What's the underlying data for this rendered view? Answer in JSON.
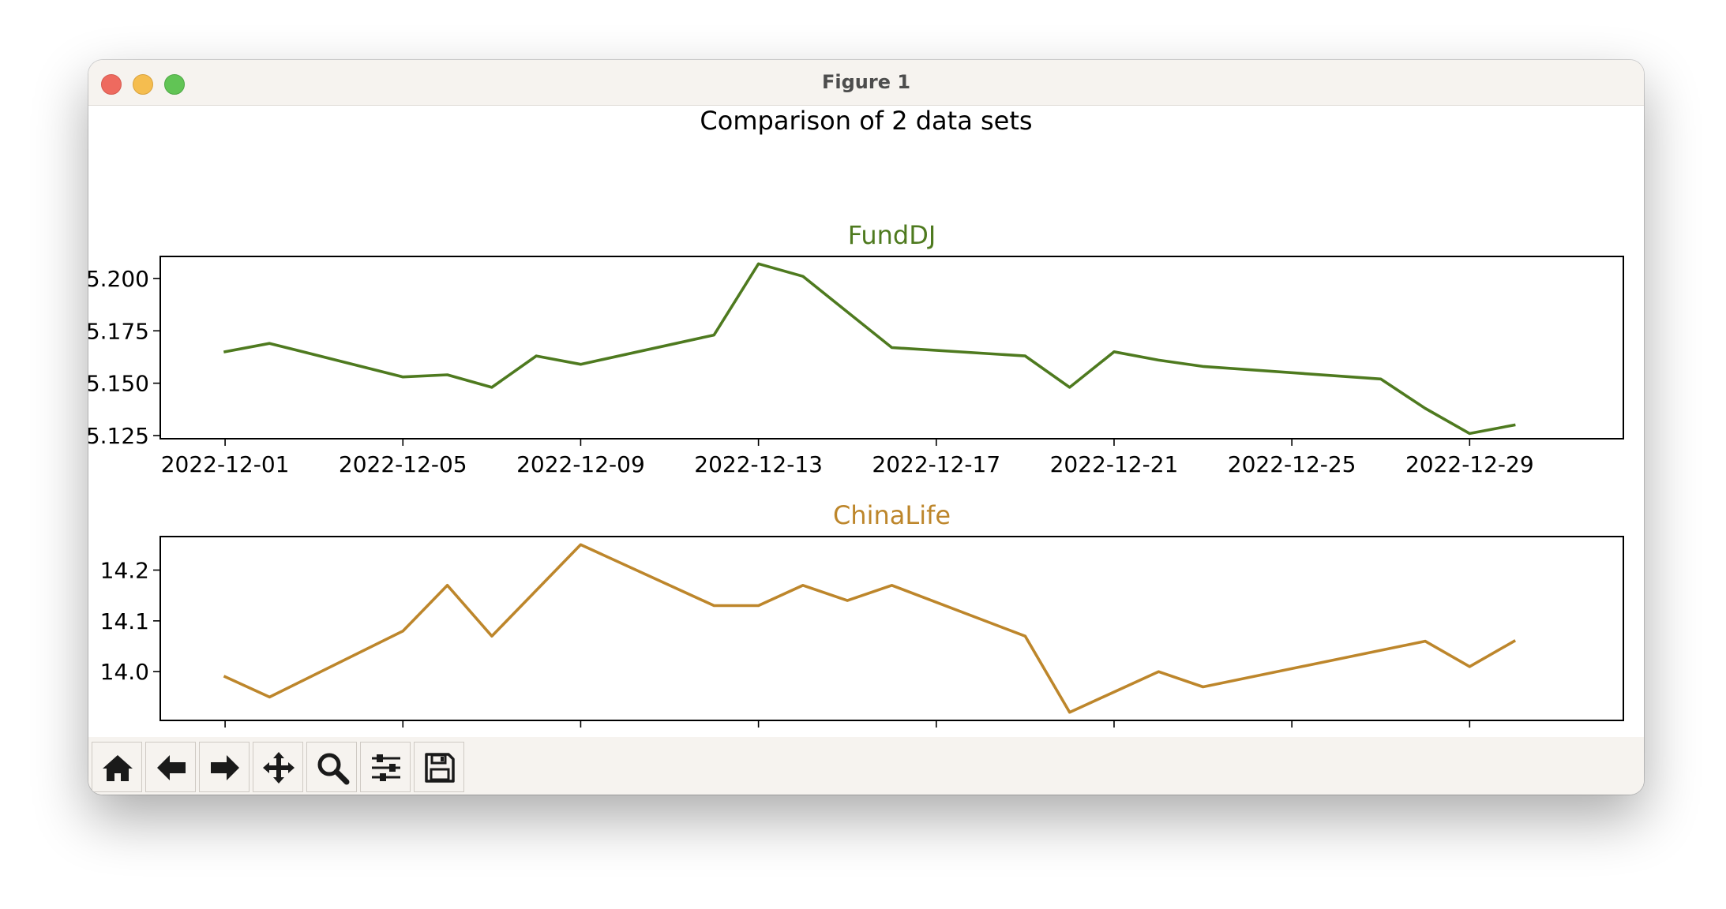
{
  "window": {
    "title": "Figure 1"
  },
  "toolbar": {
    "buttons": [
      {
        "icon": "home-icon"
      },
      {
        "icon": "back-arrow-icon"
      },
      {
        "icon": "forward-arrow-icon"
      },
      {
        "icon": "pan-move-icon"
      },
      {
        "icon": "zoom-magnifier-icon"
      },
      {
        "icon": "configure-subplots-icon"
      },
      {
        "icon": "save-floppy-icon"
      }
    ]
  },
  "figure": {
    "suptitle": "Comparison of 2 data sets"
  },
  "chart_data": [
    {
      "type": "line",
      "title": "FundDJ",
      "color": "#4e7a1f",
      "x": [
        "2022-12-01",
        "2022-12-02",
        "2022-12-05",
        "2022-12-06",
        "2022-12-07",
        "2022-12-08",
        "2022-12-09",
        "2022-12-12",
        "2022-12-13",
        "2022-12-14",
        "2022-12-16",
        "2022-12-19",
        "2022-12-20",
        "2022-12-21",
        "2022-12-22",
        "2022-12-23",
        "2022-12-27",
        "2022-12-28",
        "2022-12-29",
        "2022-12-30"
      ],
      "values": [
        5.165,
        5.169,
        5.153,
        5.154,
        5.148,
        5.163,
        5.159,
        5.173,
        5.207,
        5.201,
        5.167,
        5.163,
        5.148,
        5.165,
        5.161,
        5.158,
        5.152,
        5.138,
        5.126,
        5.13
      ],
      "xticks": [
        "2022-12-01",
        "2022-12-05",
        "2022-12-09",
        "2022-12-13",
        "2022-12-17",
        "2022-12-21",
        "2022-12-25",
        "2022-12-29"
      ],
      "yticks": [
        5.125,
        5.15,
        5.175,
        5.2
      ],
      "ytick_labels": [
        "5.125",
        "5.150",
        "5.175",
        "5.200"
      ],
      "xlim": [
        "2022-11-29T13:00",
        "2023-01-01T11:00"
      ],
      "ylim": [
        5.1235,
        5.2105
      ],
      "grid": false
    },
    {
      "type": "line",
      "title": "ChinaLife",
      "color": "#bd862b",
      "x": [
        "2022-12-01",
        "2022-12-02",
        "2022-12-05",
        "2022-12-06",
        "2022-12-07",
        "2022-12-09",
        "2022-12-12",
        "2022-12-13",
        "2022-12-14",
        "2022-12-15",
        "2022-12-16",
        "2022-12-19",
        "2022-12-20",
        "2022-12-22",
        "2022-12-23",
        "2022-12-28",
        "2022-12-29",
        "2022-12-30"
      ],
      "values": [
        13.99,
        13.95,
        14.08,
        14.17,
        14.07,
        14.25,
        14.13,
        14.13,
        14.17,
        14.14,
        14.17,
        14.07,
        13.92,
        14.0,
        13.97,
        14.06,
        14.01,
        14.06
      ],
      "xticks": [
        "2022-12-01",
        "2022-12-05",
        "2022-12-09",
        "2022-12-13",
        "2022-12-17",
        "2022-12-21",
        "2022-12-25",
        "2022-12-29"
      ],
      "yticks": [
        14.0,
        14.1,
        14.2
      ],
      "ytick_labels": [
        "14.0",
        "14.1",
        "14.2"
      ],
      "xlim": [
        "2022-11-29T13:00",
        "2023-01-01T11:00"
      ],
      "ylim": [
        13.904,
        14.266
      ],
      "grid": false
    }
  ]
}
